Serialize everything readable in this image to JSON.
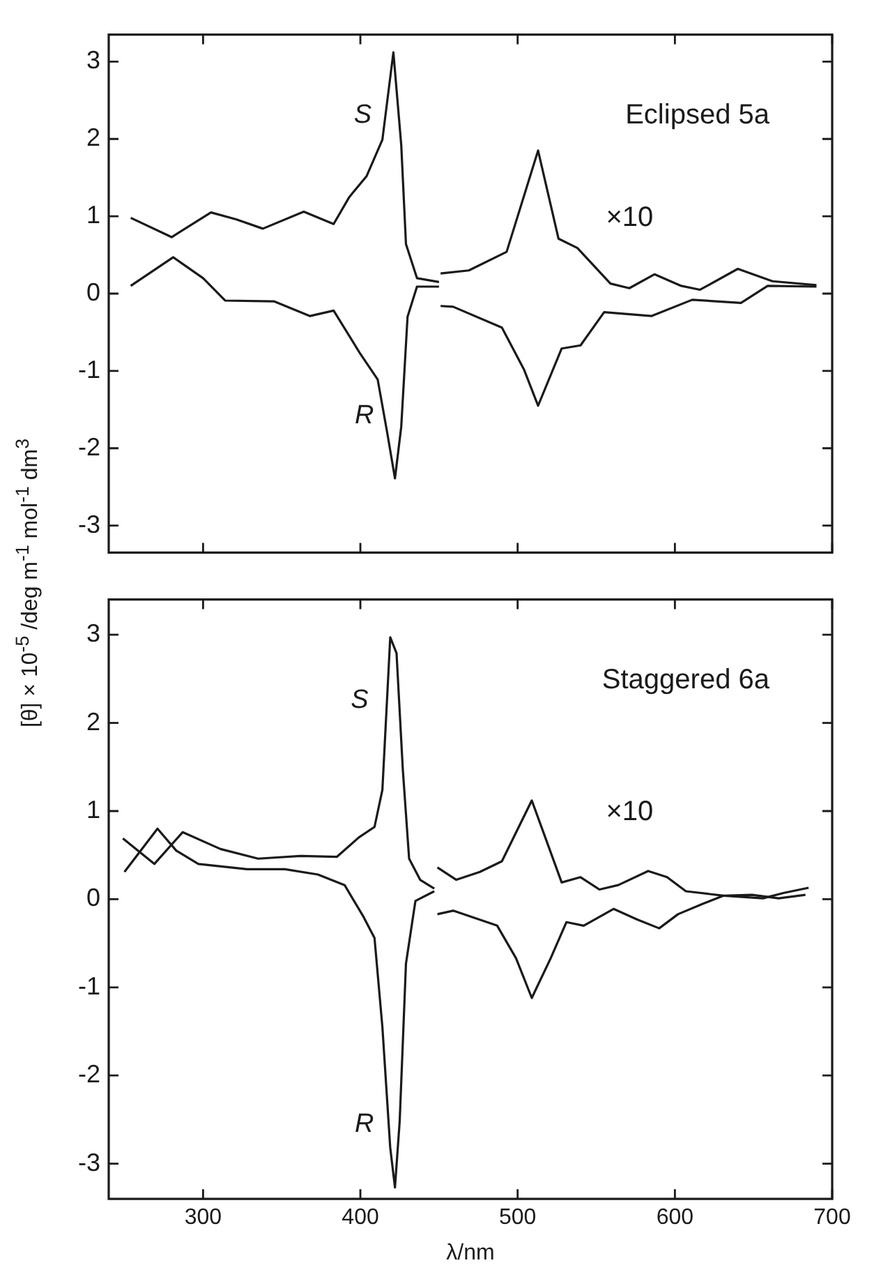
{
  "chart_data": [
    {
      "type": "line",
      "annotations": [
        "Eclipsed 5a",
        "×10"
      ],
      "ylabel": "[θ] × 10$^{-5}$ /deg m$^{-1}$ mol$^{-1}$ dm$^{3}$",
      "xlim": [
        240,
        700
      ],
      "xticks": [
        300,
        400,
        500,
        600,
        700
      ],
      "ylim": [
        -3.35,
        3.35
      ],
      "yticks": [
        -3,
        -2,
        -1,
        0,
        1,
        2,
        3
      ],
      "tick_labels": "y",
      "grid": false,
      "legend": false,
      "marker": "none",
      "series": [
        {
          "name": "S",
          "color": "#1a1a1a",
          "x": [
            254,
            280,
            305,
            321,
            338,
            364,
            383,
            393,
            404,
            414,
            421,
            426,
            429,
            436,
            450,
            450.5,
            451,
            469,
            493,
            513,
            526,
            538,
            559,
            571,
            587,
            604,
            616,
            640,
            662,
            690
          ],
          "values": [
            0.98,
            0.73,
            1.05,
            0.96,
            0.84,
            1.06,
            0.9,
            1.25,
            1.52,
            1.99,
            3.12,
            1.92,
            0.64,
            0.2,
            0.15,
            null,
            0.26,
            0.3,
            0.54,
            1.85,
            0.71,
            0.59,
            0.13,
            0.07,
            0.25,
            0.1,
            0.05,
            0.32,
            0.16,
            0.11
          ]
        },
        {
          "name": "R",
          "color": "#1a1a1a",
          "x": [
            254,
            281,
            300,
            314,
            345,
            368,
            383,
            400,
            411,
            417,
            422,
            426,
            430,
            436,
            450,
            450.5,
            451,
            459,
            490,
            504,
            513,
            528,
            540,
            555,
            585,
            611,
            642,
            659,
            690
          ],
          "values": [
            0.1,
            0.47,
            0.2,
            -0.09,
            -0.1,
            -0.29,
            -0.22,
            -0.78,
            -1.11,
            -1.79,
            -2.39,
            -1.72,
            -0.3,
            0.09,
            0.09,
            null,
            -0.16,
            -0.17,
            -0.44,
            -0.98,
            -1.45,
            -0.71,
            -0.67,
            -0.24,
            -0.29,
            -0.08,
            -0.12,
            0.1,
            0.09
          ]
        }
      ]
    },
    {
      "type": "line",
      "annotations": [
        "Staggered 6a",
        "×10"
      ],
      "xlabel": "λ/nm",
      "xlim": [
        240,
        700
      ],
      "xticks": [
        300,
        400,
        500,
        600,
        700
      ],
      "ylim": [
        -3.4,
        3.4
      ],
      "yticks": [
        -3,
        -2,
        -1,
        0,
        1,
        2,
        3
      ],
      "grid": false,
      "legend": false,
      "marker": "none",
      "series": [
        {
          "name": "S",
          "color": "#1a1a1a",
          "x": [
            249,
            269,
            287,
            311,
            335,
            362,
            385,
            399,
            409,
            414,
            419,
            423,
            427,
            431,
            438,
            447,
            448,
            449,
            461,
            476,
            490,
            509,
            528,
            540,
            552,
            564,
            583,
            595,
            607,
            631,
            656,
            669,
            685
          ],
          "values": [
            0.69,
            0.4,
            0.76,
            0.57,
            0.46,
            0.49,
            0.48,
            0.7,
            0.82,
            1.24,
            2.97,
            2.79,
            1.47,
            0.46,
            0.22,
            0.12,
            null,
            0.36,
            0.22,
            0.31,
            0.43,
            1.12,
            0.19,
            0.25,
            0.11,
            0.16,
            0.32,
            0.25,
            0.09,
            0.04,
            0.01,
            0.07,
            0.13
          ]
        },
        {
          "name": "R",
          "color": "#1a1a1a",
          "x": [
            250,
            271,
            283,
            297,
            328,
            352,
            373,
            390,
            402,
            409,
            414,
            419,
            422,
            425,
            429,
            435,
            447,
            448,
            449,
            459,
            487,
            499,
            509,
            521,
            531,
            542,
            561,
            576,
            590,
            602,
            618,
            631,
            649,
            666,
            683
          ],
          "values": [
            0.31,
            0.8,
            0.55,
            0.4,
            0.34,
            0.34,
            0.28,
            0.16,
            -0.2,
            -0.44,
            -1.45,
            -2.82,
            -3.27,
            -2.52,
            -0.73,
            -0.02,
            0.09,
            null,
            -0.17,
            -0.13,
            -0.3,
            -0.67,
            -1.12,
            -0.67,
            -0.26,
            -0.3,
            -0.11,
            -0.23,
            -0.33,
            -0.17,
            -0.05,
            0.04,
            0.05,
            0.01,
            0.05
          ]
        }
      ]
    }
  ]
}
